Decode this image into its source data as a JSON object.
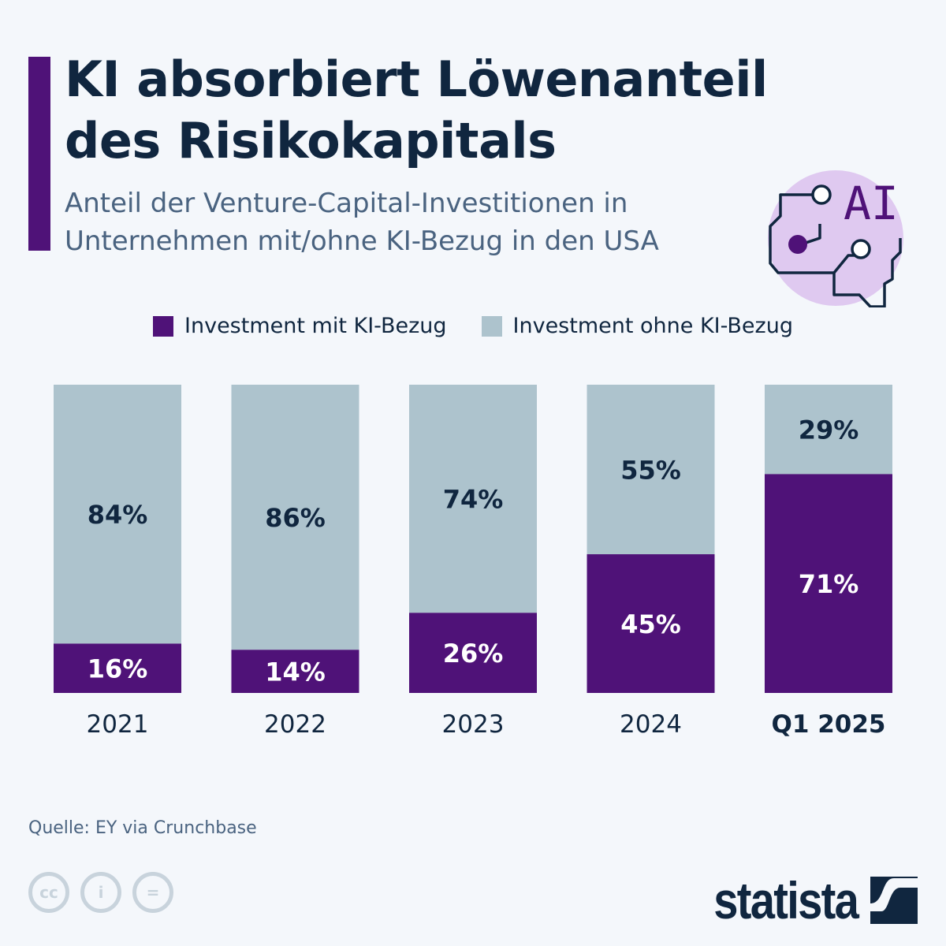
{
  "header": {
    "title": "KI absorbiert Löwenanteil des Risikokapitals",
    "subtitle": "Anteil der Venture-Capital-Investitionen in Unternehmen mit/ohne KI-Bezug in den USA",
    "icon": "ai-brain-circuit-icon",
    "icon_text": "AI"
  },
  "colors": {
    "mit": "#4f1278",
    "ohne": "#adc3cd",
    "text": "#10263f",
    "background": "#f4f7fb"
  },
  "chart_data": {
    "type": "bar",
    "stacked": true,
    "normalized": true,
    "categories": [
      "2021",
      "2022",
      "2023",
      "2024",
      "Q1 2025"
    ],
    "series": [
      {
        "name": "Investment mit KI-Bezug",
        "values": [
          16,
          14,
          26,
          45,
          71
        ]
      },
      {
        "name": "Investment ohne KI-Bezug",
        "values": [
          84,
          86,
          74,
          55,
          29
        ]
      }
    ],
    "unit": "%",
    "ylim": [
      0,
      100
    ],
    "grid": false,
    "legend": "top-center",
    "highlight_category": "Q1 2025"
  },
  "footer": {
    "source": "Quelle: EY via Crunchbase",
    "license_icons": [
      "cc-icon",
      "by-icon",
      "nd-icon"
    ],
    "brand": "statista"
  }
}
